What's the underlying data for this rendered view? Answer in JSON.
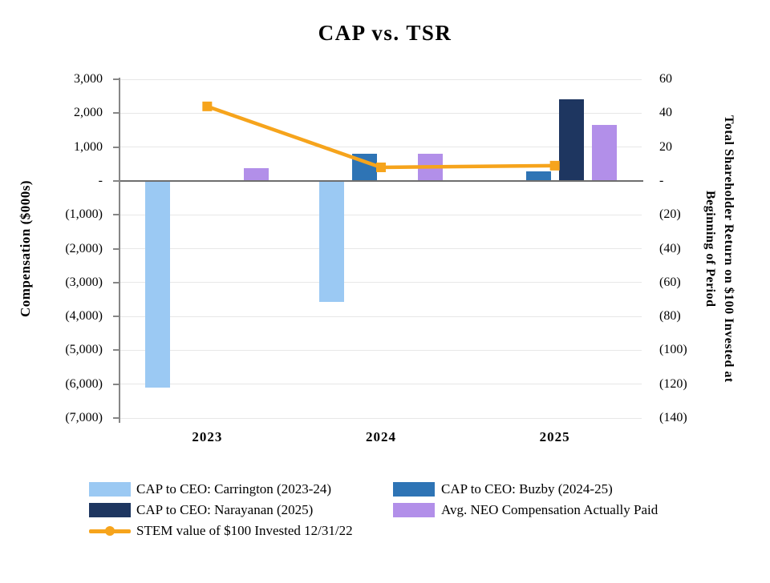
{
  "title": "CAP vs. TSR",
  "chart_data": {
    "type": "combo-bar-line",
    "categories": [
      "2023",
      "2024",
      "2025"
    ],
    "bar_series": [
      {
        "name": "CAP to CEO: Carrington (2023-24)",
        "color": "#9bc9f3",
        "values": [
          -6100,
          -3580,
          null
        ]
      },
      {
        "name": "CAP to CEO: Buzby (2024-25)",
        "color": "#2e74b5",
        "values": [
          null,
          810,
          270
        ]
      },
      {
        "name": "CAP to CEO: Narayanan (2025)",
        "color": "#1e3660",
        "values": [
          null,
          null,
          2400
        ]
      },
      {
        "name": "Avg. NEO Compensation Actually Paid",
        "color": "#b28fe9",
        "values": [
          380,
          790,
          1650
        ]
      }
    ],
    "line_series": {
      "name": "STEM value of $100 Invested 12/31/22",
      "color": "#f6a41c",
      "axis": "right",
      "values": [
        44,
        8,
        9
      ]
    },
    "left_axis": {
      "title": "Compensation ($000s)",
      "max": 3000,
      "min": -7000,
      "step": 1000,
      "tick_labels": [
        "3,000",
        "2,000",
        "1,000",
        "-",
        "(1,000)",
        "(2,000)",
        "(3,000)",
        "(4,000)",
        "(5,000)",
        "(6,000)",
        "(7,000)"
      ]
    },
    "right_axis": {
      "title_line1": "Total Shareholder Return  on $100 Invested at",
      "title_line2": "Beginning of Period",
      "max": 60,
      "min": -140,
      "step": 20,
      "tick_labels": [
        "60",
        "40",
        "20",
        "-",
        "(20)",
        "(40)",
        "(60)",
        "(80)",
        "(100)",
        "(120)",
        "(140)"
      ]
    },
    "x_axis": {
      "labels": [
        "2023",
        "2024",
        "2025"
      ]
    },
    "grid": "horizontal",
    "legend_position": "bottom"
  },
  "legend": {
    "items": [
      {
        "label": "CAP to CEO: Carrington (2023-24)",
        "swatch": "bar",
        "color": "#9bc9f3",
        "row": 0,
        "col": 0
      },
      {
        "label": "CAP to CEO: Buzby (2024-25)",
        "swatch": "bar",
        "color": "#2e74b5",
        "row": 0,
        "col": 1
      },
      {
        "label": "CAP to CEO: Narayanan (2025)",
        "swatch": "bar",
        "color": "#1e3660",
        "row": 1,
        "col": 0
      },
      {
        "label": "Avg. NEO Compensation Actually Paid",
        "swatch": "bar",
        "color": "#b28fe9",
        "row": 1,
        "col": 1
      },
      {
        "label": "STEM value of $100 Invested 12/31/22",
        "swatch": "line",
        "color": "#f6a41c",
        "row": 2,
        "col": 0
      }
    ]
  },
  "colors": {
    "gridline": "#e7e7e7",
    "zero_line": "#6e6e6e",
    "axis": "#868686"
  }
}
